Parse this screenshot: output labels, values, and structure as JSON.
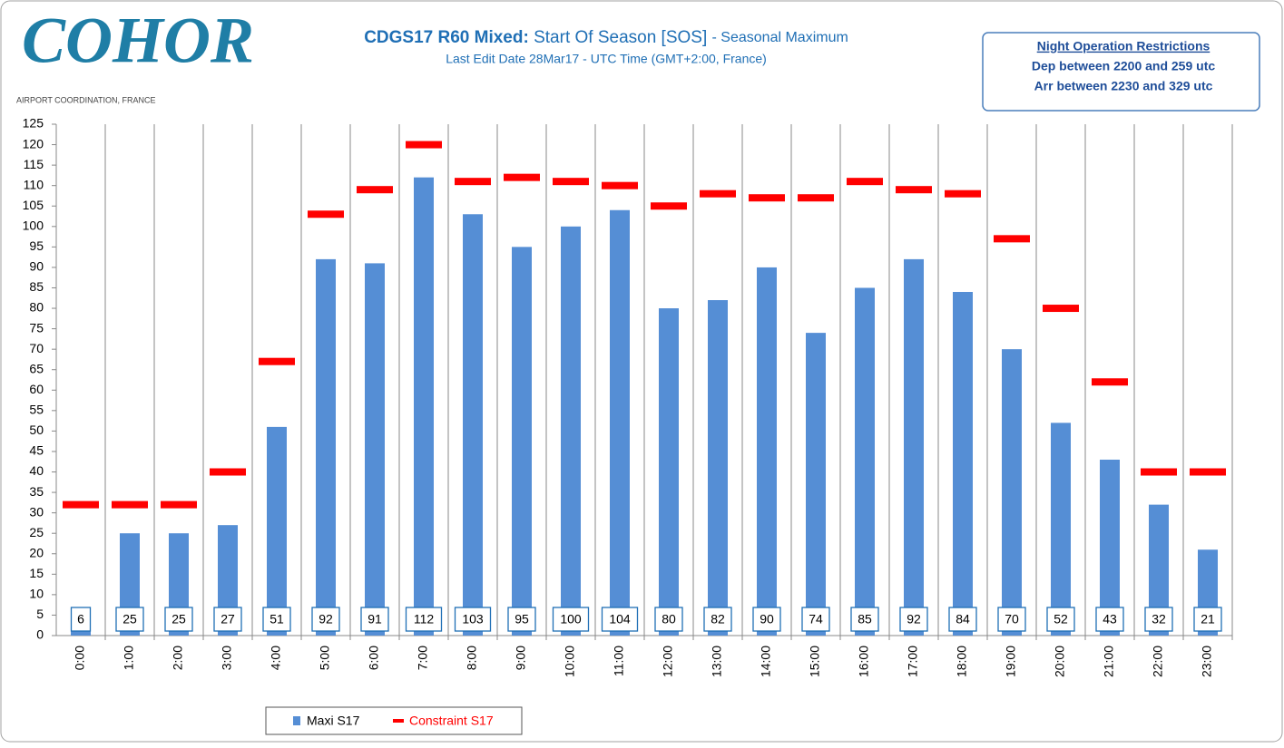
{
  "logo": {
    "name": "COHOR",
    "tagline": "AIRPORT COORDINATION, FRANCE"
  },
  "notice": {
    "title": "Night Operation Restrictions",
    "lines": [
      "Dep between 2200 and 259 utc",
      "Arr between 2230 and 329 utc"
    ]
  },
  "chart_data": {
    "type": "bar",
    "title": [
      "CDGS17 R60 Mixed:",
      "Start Of Season [SOS]",
      "- Seasonal Maximum"
    ],
    "subtitle": "Last Edit Date 28Mar17 - UTC Time (GMT+2:00, France)",
    "categories": [
      "0:00",
      "1:00",
      "2:00",
      "3:00",
      "4:00",
      "5:00",
      "6:00",
      "7:00",
      "8:00",
      "9:00",
      "10:00",
      "11:00",
      "12:00",
      "13:00",
      "14:00",
      "15:00",
      "16:00",
      "17:00",
      "18:00",
      "19:00",
      "20:00",
      "21:00",
      "22:00",
      "23:00"
    ],
    "series": [
      {
        "name": "Maxi S17",
        "type": "bar",
        "color": "#558ed5",
        "values": [
          6,
          25,
          25,
          27,
          51,
          92,
          91,
          112,
          103,
          95,
          100,
          104,
          80,
          82,
          90,
          74,
          85,
          92,
          84,
          70,
          52,
          43,
          32,
          21
        ]
      },
      {
        "name": "Constraint S17",
        "type": "dash",
        "color": "#ff0000",
        "values": [
          32,
          32,
          32,
          40,
          67,
          103,
          109,
          120,
          111,
          112,
          111,
          110,
          105,
          108,
          107,
          107,
          111,
          109,
          108,
          97,
          80,
          62,
          40,
          40
        ]
      }
    ],
    "ylim": [
      0,
      125
    ],
    "yticks": [
      0,
      5,
      10,
      15,
      20,
      25,
      30,
      35,
      40,
      45,
      50,
      55,
      60,
      65,
      70,
      75,
      80,
      85,
      90,
      95,
      100,
      105,
      110,
      115,
      120,
      125
    ],
    "grid": true,
    "legend": "bottom"
  }
}
